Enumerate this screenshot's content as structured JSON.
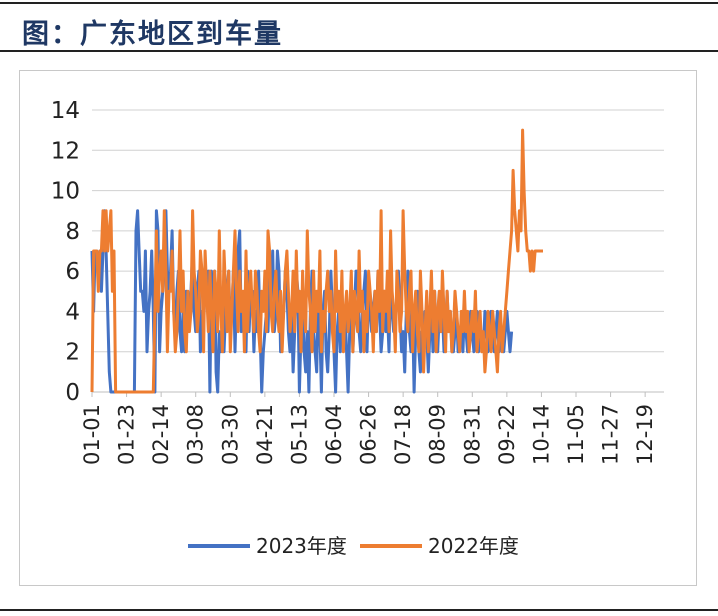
{
  "header": {
    "title": "图：广东地区到车量"
  },
  "colors": {
    "series_2023": "#4472c4",
    "series_2022": "#ed7d31",
    "grid": "#d0d0d0",
    "title": "#1f3864"
  },
  "chart_data": {
    "type": "line",
    "title": "",
    "xlabel": "",
    "ylabel": "",
    "ylim": [
      0,
      14
    ],
    "yticks": [
      0,
      2,
      4,
      6,
      8,
      10,
      12,
      14
    ],
    "grid": true,
    "legend_position": "bottom",
    "x_tick_labels": [
      "01-01",
      "01-23",
      "02-14",
      "03-08",
      "03-30",
      "04-21",
      "05-13",
      "06-04",
      "06-26",
      "07-18",
      "08-09",
      "08-31",
      "09-22",
      "10-14",
      "11-05",
      "11-27",
      "12-19"
    ],
    "days_per_tick": 22,
    "n_days": 365,
    "series": [
      {
        "name": "2023年度",
        "color": "#4472c4",
        "values": [
          7,
          4,
          7,
          7,
          6,
          7,
          5,
          7,
          9,
          7,
          4,
          1,
          0,
          0,
          0,
          0,
          0,
          0,
          0,
          0,
          0,
          0,
          0,
          0,
          0,
          0,
          0,
          0,
          8,
          9,
          7,
          5,
          5,
          4,
          7,
          2,
          4,
          5,
          7,
          4,
          0,
          9,
          8,
          2,
          4,
          5,
          6,
          9,
          6,
          5,
          6,
          8,
          4,
          3,
          5,
          6,
          3,
          2,
          4,
          2,
          5,
          3,
          4,
          5,
          7,
          4,
          3,
          5,
          6,
          2,
          4,
          3,
          6,
          5,
          6,
          0,
          6,
          4,
          6,
          1,
          0,
          3,
          2,
          3,
          2,
          4,
          5,
          6,
          3,
          4,
          6,
          2,
          5,
          7,
          8,
          3,
          4,
          5,
          2,
          6,
          3,
          5,
          5,
          2,
          4,
          3,
          6,
          3,
          0,
          2,
          3,
          4,
          3,
          6,
          5,
          7,
          3,
          4,
          7,
          6,
          2,
          3,
          4,
          6,
          5,
          3,
          2,
          4,
          1,
          3,
          6,
          5,
          0,
          3,
          5,
          2,
          1,
          3,
          0,
          4,
          6,
          3,
          2,
          1,
          5,
          3,
          0,
          4,
          5,
          2,
          1,
          3,
          6,
          4,
          2,
          0,
          3,
          4,
          2,
          5,
          3,
          4,
          2,
          0,
          3,
          5,
          2,
          4,
          6,
          6,
          3,
          2,
          4,
          5,
          6,
          2,
          5,
          4,
          3,
          4,
          5,
          3,
          6,
          4,
          2,
          3,
          5,
          3,
          4,
          2,
          6,
          4,
          3,
          3,
          5,
          6,
          4,
          2,
          3,
          1,
          4,
          6,
          3,
          2,
          4,
          0,
          3,
          5,
          2,
          1,
          3,
          2,
          4,
          3,
          1,
          3,
          4,
          2,
          5,
          3,
          2,
          4,
          3,
          4,
          2,
          3,
          5,
          3,
          4,
          2,
          2,
          3,
          4,
          2,
          3,
          3,
          2,
          4,
          3,
          2,
          3,
          4,
          3,
          2,
          3,
          4,
          2,
          3,
          3,
          2,
          4,
          3,
          2,
          3,
          4,
          3,
          2,
          3,
          4,
          2,
          3,
          3,
          2,
          3,
          4,
          3,
          2,
          3
        ]
      },
      {
        "name": "2022年度",
        "color": "#ed7d31",
        "values": [
          0,
          7,
          7,
          7,
          5,
          7,
          7,
          9,
          7,
          9,
          7,
          8,
          9,
          5,
          7,
          0,
          0,
          0,
          0,
          0,
          0,
          0,
          0,
          0,
          0,
          0,
          0,
          0,
          0,
          0,
          0,
          0,
          0,
          0,
          0,
          0,
          0,
          0,
          0,
          0,
          4,
          8,
          4,
          6,
          7,
          5,
          9,
          6,
          2,
          5,
          5,
          7,
          4,
          2,
          3,
          5,
          8,
          4,
          6,
          3,
          2,
          5,
          3,
          4,
          9,
          6,
          5,
          3,
          4,
          7,
          6,
          2,
          7,
          5,
          3,
          6,
          4,
          2,
          6,
          5,
          3,
          8,
          4,
          2,
          7,
          5,
          3,
          6,
          2,
          4,
          6,
          8,
          5,
          3,
          6,
          4,
          5,
          2,
          7,
          3,
          5,
          6,
          4,
          3,
          6,
          5,
          3,
          2,
          5,
          4,
          6,
          3,
          8,
          7,
          4,
          3,
          5,
          6,
          4,
          3,
          5,
          2,
          4,
          6,
          7,
          5,
          3,
          4,
          6,
          3,
          7,
          4,
          5,
          2,
          6,
          4,
          3,
          8,
          5,
          4,
          2,
          6,
          3,
          5,
          4,
          7,
          2,
          4,
          3,
          5,
          6,
          4,
          5,
          3,
          2,
          7,
          4,
          5,
          3,
          6,
          2,
          4,
          5,
          3,
          4,
          6,
          2,
          5,
          4,
          3,
          7,
          4,
          5,
          2,
          4,
          3,
          6,
          5,
          4,
          2,
          5,
          3,
          6,
          4,
          9,
          3,
          5,
          4,
          6,
          3,
          8,
          5,
          4,
          2,
          6,
          5,
          3,
          4,
          9,
          6,
          4,
          3,
          5,
          6,
          2,
          4,
          5,
          3,
          2,
          6,
          4,
          1,
          3,
          5,
          2,
          4,
          6,
          3,
          5,
          2,
          4,
          5,
          3,
          6,
          4,
          2,
          5,
          3,
          4,
          2,
          3,
          5,
          4,
          3,
          2,
          4,
          3,
          5,
          3,
          4,
          2,
          3,
          4,
          3,
          5,
          2,
          3,
          4,
          2,
          3,
          1,
          2,
          4,
          3,
          2,
          4,
          3,
          2,
          1,
          3,
          4,
          2,
          3,
          4,
          5,
          6,
          7,
          8,
          11,
          9,
          8,
          7,
          9,
          8,
          13,
          10,
          8,
          7,
          7,
          6,
          7,
          6,
          7,
          7,
          7,
          7,
          7,
          7
        ]
      }
    ]
  }
}
